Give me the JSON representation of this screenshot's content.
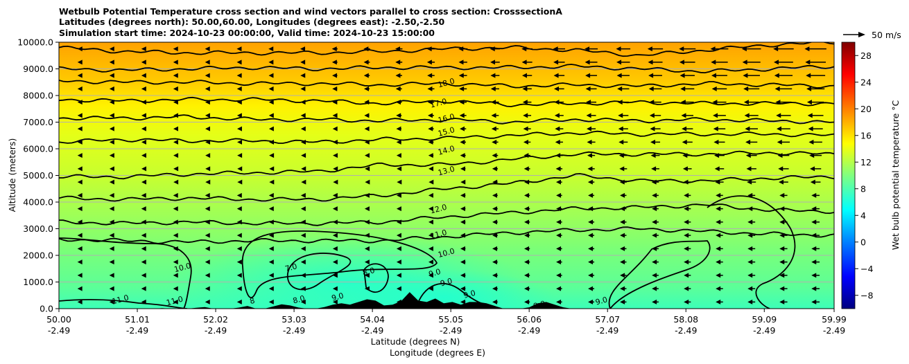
{
  "chart_data": {
    "type": "contour",
    "title_lines": [
      "Wetbulb Potential Temperature cross section and wind vectors parallel to cross section: CrosssectionA",
      "Latitudes (degrees north): 50.00,60.00, Longitudes (degrees east): -2.50,-2.50",
      "Simulation start time: 2024-10-23 00:00:00, Valid time: 2024-10-23 15:00:00"
    ],
    "xlabel_1": "Latitude (degrees N)",
    "xlabel_2": "Longitude (degrees E)",
    "ylabel": "Altitude (meters)",
    "x_ticks": [
      {
        "lat": "50.00",
        "lon": "-2.49"
      },
      {
        "lat": "51.01",
        "lon": "-2.49"
      },
      {
        "lat": "52.02",
        "lon": "-2.49"
      },
      {
        "lat": "53.03",
        "lon": "-2.49"
      },
      {
        "lat": "54.04",
        "lon": "-2.49"
      },
      {
        "lat": "55.05",
        "lon": "-2.49"
      },
      {
        "lat": "56.06",
        "lon": "-2.49"
      },
      {
        "lat": "57.07",
        "lon": "-2.49"
      },
      {
        "lat": "58.08",
        "lon": "-2.49"
      },
      {
        "lat": "59.09",
        "lon": "-2.49"
      },
      {
        "lat": "59.99",
        "lon": "-2.49"
      }
    ],
    "xlim": [
      50.0,
      59.99
    ],
    "y_ticks": [
      "0.0",
      "1000.0",
      "2000.0",
      "3000.0",
      "4000.0",
      "5000.0",
      "6000.0",
      "7000.0",
      "8000.0",
      "9000.0",
      "10000.0"
    ],
    "ylim": [
      0,
      10000
    ],
    "grid": "horizontal",
    "colorbar": {
      "label": "Wet bulb potential temperature °C",
      "ticks": [
        "−8",
        "−4",
        "0",
        "4",
        "8",
        "12",
        "16",
        "20",
        "24",
        "28"
      ],
      "range": [
        -10,
        30
      ],
      "colormap": "jet"
    },
    "quiver_key": {
      "label": "50 m/s"
    },
    "contour_labels": [
      {
        "text": "18.0",
        "lat": 55.0,
        "alt": 8380
      },
      {
        "text": "17.0",
        "lat": 54.9,
        "alt": 7620
      },
      {
        "text": "16.0",
        "lat": 55.0,
        "alt": 7050
      },
      {
        "text": "15.0",
        "lat": 55.0,
        "alt": 6550
      },
      {
        "text": "14.0",
        "lat": 55.0,
        "alt": 5850
      },
      {
        "text": "13.0",
        "lat": 55.0,
        "alt": 5080
      },
      {
        "text": "12.0",
        "lat": 54.9,
        "alt": 3650
      },
      {
        "text": "11.0",
        "lat": 54.9,
        "alt": 2700
      },
      {
        "text": "10.0",
        "lat": 55.0,
        "alt": 2000
      },
      {
        "text": "10.0",
        "lat": 51.6,
        "alt": 1450
      },
      {
        "text": "7.0",
        "lat": 53.0,
        "alt": 1450
      },
      {
        "text": "8.0",
        "lat": 54.0,
        "alt": 1300
      },
      {
        "text": "9.0",
        "lat": 54.85,
        "alt": 1250
      },
      {
        "text": "9.0",
        "lat": 55.0,
        "alt": 900
      },
      {
        "text": "8.0",
        "lat": 53.1,
        "alt": 250
      },
      {
        "text": "9.0",
        "lat": 53.6,
        "alt": 350
      },
      {
        "text": "8",
        "lat": 52.5,
        "alt": 200
      },
      {
        "text": "11.0",
        "lat": 51.5,
        "alt": 200
      },
      {
        "text": "11.0",
        "lat": 50.8,
        "alt": 250
      },
      {
        "text": "9.0",
        "lat": 56.2,
        "alt": 50
      },
      {
        "text": "9.0",
        "lat": 55.3,
        "alt": 450
      },
      {
        "text": "9.0",
        "lat": 57.0,
        "alt": 200
      }
    ],
    "contour_levels": [
      {
        "level": 19,
        "alt": [
          9800,
          9650,
          9600,
          9600,
          9600,
          9650,
          9750,
          9800,
          9700,
          9500,
          9700,
          9900,
          10000
        ]
      },
      {
        "level": 18,
        "alt": [
          9000,
          8950,
          9000,
          9050,
          9000,
          9050,
          9050,
          9050,
          9100,
          9000,
          8900,
          9000,
          9100
        ]
      },
      {
        "level": 17,
        "alt": [
          8550,
          8500,
          8500,
          8450,
          8450,
          8400,
          8450,
          8350,
          8400,
          8350,
          8450,
          8400,
          8350
        ]
      },
      {
        "level": 16,
        "alt": [
          7850,
          7800,
          7850,
          7850,
          7800,
          7700,
          7800,
          7650,
          7700,
          7750,
          7700,
          7700,
          7700
        ]
      },
      {
        "level": 15,
        "alt": [
          7150,
          7150,
          7200,
          7100,
          7100,
          7050,
          7100,
          7000,
          7100,
          7050,
          7100,
          7050,
          7000
        ]
      },
      {
        "level": 14,
        "alt": [
          6250,
          6350,
          6300,
          6300,
          6250,
          6350,
          6400,
          6500,
          6600,
          6550,
          6550,
          6550,
          6500
        ]
      },
      {
        "level": 13,
        "alt": [
          4950,
          4950,
          5050,
          5100,
          5150,
          5400,
          5400,
          5600,
          5800,
          5800,
          5800,
          5850,
          5800
        ]
      },
      {
        "level": 12,
        "alt": [
          4150,
          4100,
          4150,
          4100,
          4100,
          4250,
          4500,
          4700,
          5000,
          4800,
          4800,
          4900,
          4950
        ]
      },
      {
        "level": 11,
        "alt": [
          3250,
          3200,
          3250,
          3200,
          3200,
          3250,
          3450,
          3600,
          3750,
          3800,
          3900,
          3700,
          3650
        ]
      },
      {
        "level": 10,
        "alt": [
          2600,
          2550,
          2500,
          2550,
          2550,
          2550,
          2700,
          2850,
          2950,
          3000,
          2900,
          2800,
          2750
        ]
      }
    ],
    "terrain_alt": [
      0,
      0,
      0,
      20,
      0,
      0,
      0,
      30,
      60,
      0,
      0,
      0,
      40,
      100,
      0,
      0,
      80,
      160,
      120,
      40,
      0,
      0,
      60,
      150,
      200,
      150,
      250,
      350,
      300,
      120,
      150,
      280,
      620,
      300,
      250,
      380,
      200,
      250,
      150,
      250,
      250,
      200,
      100,
      0,
      0,
      0,
      50,
      200,
      250,
      150,
      50,
      0,
      0,
      0,
      0,
      0,
      0,
      0,
      0,
      0,
      0
    ],
    "wind_u_ms": "mostly weak flow from north-east, strengthening to about 25 m/s above 8000 m in northern half"
  }
}
